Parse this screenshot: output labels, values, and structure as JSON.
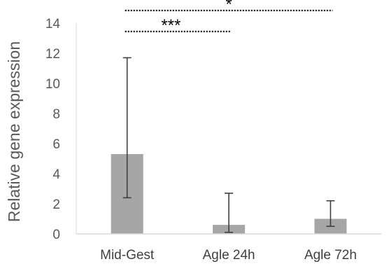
{
  "chart_data": {
    "type": "bar",
    "categories": [
      "Mid-Gest",
      "Agle 24h",
      "Agle 72h"
    ],
    "values": [
      5.3,
      0.6,
      1.0
    ],
    "error_low": [
      2.4,
      0.1,
      0.5
    ],
    "error_high": [
      11.7,
      2.7,
      2.2
    ],
    "ylabel": "Relative gene expression",
    "ylim": [
      0,
      14
    ],
    "yticks": [
      0,
      2,
      4,
      6,
      8,
      10,
      12,
      14
    ],
    "grid": false,
    "legend": "none",
    "significance": [
      {
        "from": "Mid-Gest",
        "to": "Agle 24h",
        "label": "***"
      },
      {
        "from": "Mid-Gest",
        "to": "Agle 72h",
        "label": "*"
      }
    ],
    "colors": {
      "bar": "#a6a6a6",
      "axis": "#d9d9d9",
      "text": "#595959",
      "error": "#404040",
      "bracket": "#000000"
    }
  }
}
